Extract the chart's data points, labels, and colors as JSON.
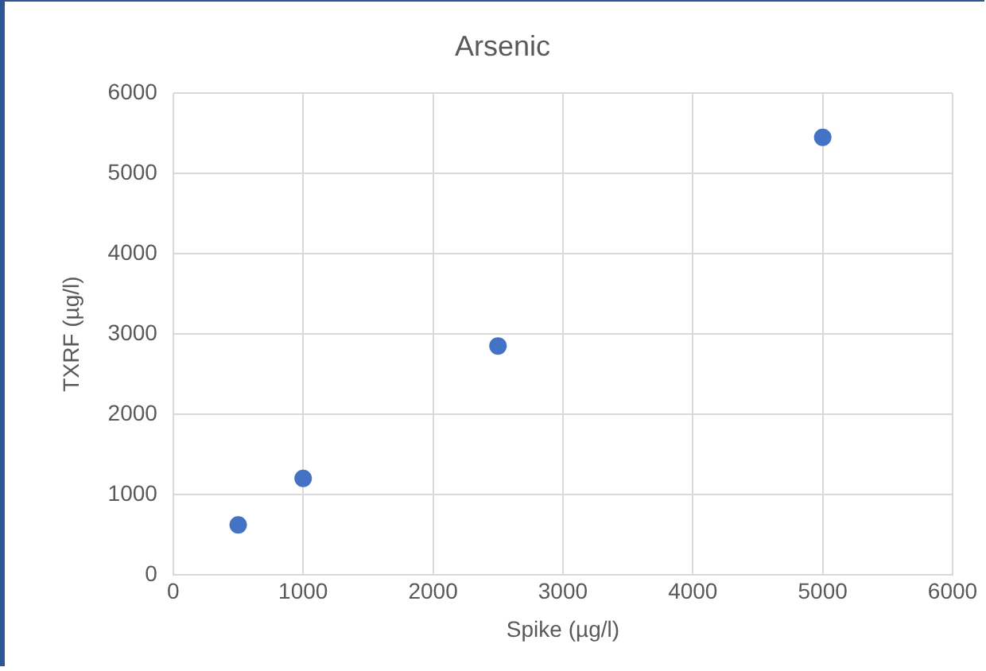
{
  "chart_data": {
    "type": "scatter",
    "title": "Arsenic",
    "xlabel": "Spike (µg/l)",
    "ylabel": "TXRF (µg/l)",
    "x": [
      500,
      1000,
      2500,
      5000
    ],
    "series": [
      {
        "color": "#4472c4",
        "values": [
          620,
          1200,
          2850,
          5450
        ]
      }
    ],
    "xlim": [
      0,
      6000
    ],
    "xticks": [
      0,
      1000,
      2000,
      3000,
      4000,
      5000,
      6000
    ],
    "ylim": [
      0,
      6000
    ],
    "yticks": [
      0,
      1000,
      2000,
      3000,
      4000,
      5000,
      6000
    ],
    "grid": true,
    "legend": false,
    "marker": "circle"
  }
}
